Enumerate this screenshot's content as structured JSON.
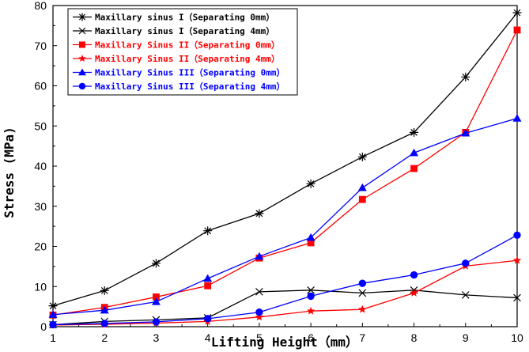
{
  "chart_data": {
    "type": "line",
    "title": "",
    "xlabel": "Lifting Height（mm）",
    "ylabel": "Stress (MPa)",
    "xlim": [
      1,
      10
    ],
    "ylim": [
      0,
      80
    ],
    "x_ticks": [
      1,
      2,
      3,
      4,
      5,
      6,
      7,
      8,
      9,
      10
    ],
    "y_ticks": [
      0,
      10,
      20,
      30,
      40,
      50,
      60,
      70,
      80
    ],
    "x": [
      1,
      2,
      3,
      4,
      5,
      6,
      7,
      8,
      9,
      10
    ],
    "legend_position": "top-left",
    "series": [
      {
        "name": "Maxillary sinus I（Separating 0mm）",
        "color": "#000000",
        "marker": "asterisk",
        "values": [
          5.2,
          9.0,
          15.8,
          23.9,
          28.2,
          35.6,
          42.3,
          48.4,
          62.2,
          78.2
        ]
      },
      {
        "name": "Maxillary sinus I（Separating 4mm）",
        "color": "#000000",
        "marker": "x",
        "values": [
          0.5,
          1.3,
          1.7,
          2.2,
          8.7,
          9.1,
          8.4,
          9.1,
          7.9,
          7.2
        ]
      },
      {
        "name": "Maxillary Sinus II（Separating 0mm）",
        "color": "#ff0000",
        "marker": "square",
        "values": [
          2.9,
          4.8,
          7.4,
          10.2,
          17.1,
          20.9,
          31.7,
          39.4,
          48.4,
          73.9
        ]
      },
      {
        "name": "Maxillary Sinus II（Separating 4mm）",
        "color": "#ff0000",
        "marker": "star",
        "values": [
          0.4,
          0.6,
          0.9,
          1.3,
          2.4,
          3.9,
          4.3,
          8.4,
          15.1,
          16.5
        ]
      },
      {
        "name": "Maxillary Sinus III（Separating 0mm）",
        "color": "#0000ff",
        "marker": "triangle",
        "values": [
          3.0,
          4.1,
          6.2,
          12.0,
          17.5,
          22.2,
          34.6,
          43.3,
          48.2,
          51.9
        ]
      },
      {
        "name": "Maxillary Sinus III（Separating 4mm）",
        "color": "#0000ff",
        "marker": "circle",
        "values": [
          0.5,
          0.8,
          1.2,
          2.0,
          3.6,
          7.6,
          10.8,
          12.9,
          15.8,
          22.8
        ]
      }
    ]
  }
}
